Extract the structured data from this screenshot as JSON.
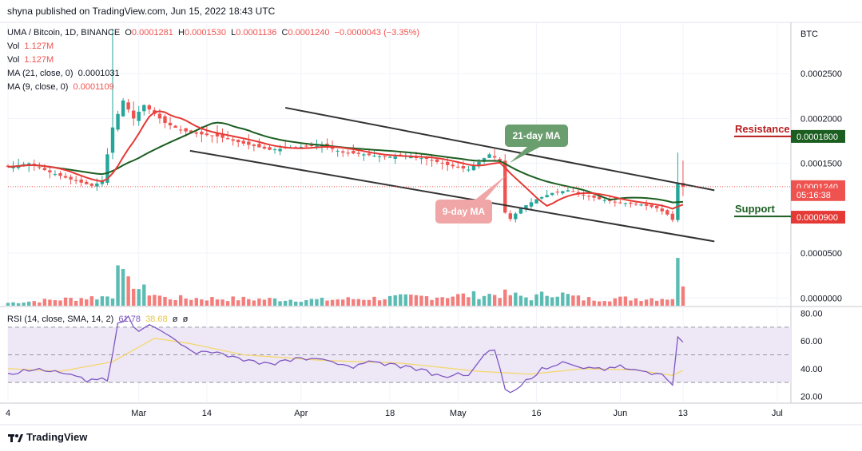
{
  "header": {
    "published": "shyna published on TradingView.com, Jun 15, 2022 18:43 UTC",
    "symbol": "UMA / Bitcoin, 1D, BINANCE",
    "ohlc": {
      "o_label": "O",
      "o": "0.0001281",
      "h_label": "H",
      "h": "0.0001530",
      "l_label": "L",
      "l": "0.0001136",
      "c_label": "C",
      "c": "0.0001240",
      "change": "−0.0000043 (−3.35%)"
    },
    "vol1_label": "Vol",
    "vol1": "1.127M",
    "vol2_label": "Vol",
    "vol2": "1.127M",
    "ma21_label": "MA (21, close, 0)",
    "ma21": "0.0001031",
    "ma9_label": "MA (9, close, 0)",
    "ma9": "0.0001109"
  },
  "rsi_legend": {
    "label": "RSI (14, close, SMA, 14, 2)",
    "rsi": "61.78",
    "sma": "38.68",
    "x1": "ø",
    "x2": "ø"
  },
  "footer": {
    "brand": "TradingView"
  },
  "colors": {
    "up": "#26a69a",
    "down": "#ef5350",
    "ma21": "#1b5e20",
    "ma9": "#e53935",
    "channel": "#333333",
    "rsi": "#7e57c2",
    "rsi_sma": "#f5d76e",
    "rsi_band": "#ede7f6",
    "resistance": "#b71c1c",
    "support": "#1b5e20"
  },
  "chart_data": {
    "type": "candlestick",
    "title": "UMA / Bitcoin, 1D, BINANCE",
    "currency_label": "BTC",
    "y_ticks": [
      "0.0002500",
      "0.0002000",
      "0.0001500",
      "0.0000500",
      "0.0000000"
    ],
    "y_tick_values": [
      0.00025,
      0.0002,
      0.00015,
      5e-05,
      0
    ],
    "ylim": [
      0.0,
      0.0003
    ],
    "x_ticks": [
      {
        "label": "4",
        "day": 0
      },
      {
        "label": "Mar",
        "day": 25
      },
      {
        "label": "14",
        "day": 38
      },
      {
        "label": "Apr",
        "day": 56
      },
      {
        "label": "18",
        "day": 73
      },
      {
        "label": "May",
        "day": 86
      },
      {
        "label": "16",
        "day": 101
      },
      {
        "label": "Jun",
        "day": 117
      },
      {
        "label": "13",
        "day": 129
      },
      {
        "label": "Jul",
        "day": 147
      }
    ],
    "ohlc_anchors": [
      {
        "day": 0,
        "close": 0.000146
      },
      {
        "day": 4,
        "close": 0.00015
      },
      {
        "day": 8,
        "close": 0.00014
      },
      {
        "day": 12,
        "close": 0.000132
      },
      {
        "day": 16,
        "close": 0.000125
      },
      {
        "day": 18,
        "close": 0.00013
      },
      {
        "day": 20,
        "close": 0.00019
      },
      {
        "day": 22,
        "close": 0.00022
      },
      {
        "day": 24,
        "close": 0.0002
      },
      {
        "day": 26,
        "close": 0.000215
      },
      {
        "day": 28,
        "close": 0.000205
      },
      {
        "day": 30,
        "close": 0.000195
      },
      {
        "day": 33,
        "close": 0.000187
      },
      {
        "day": 36,
        "close": 0.000183
      },
      {
        "day": 40,
        "close": 0.00018
      },
      {
        "day": 45,
        "close": 0.000172
      },
      {
        "day": 50,
        "close": 0.000165
      },
      {
        "day": 55,
        "close": 0.000168
      },
      {
        "day": 60,
        "close": 0.00017
      },
      {
        "day": 64,
        "close": 0.000162
      },
      {
        "day": 68,
        "close": 0.00016
      },
      {
        "day": 72,
        "close": 0.000157
      },
      {
        "day": 76,
        "close": 0.000158
      },
      {
        "day": 80,
        "close": 0.000155
      },
      {
        "day": 84,
        "close": 0.000148
      },
      {
        "day": 88,
        "close": 0.000143
      },
      {
        "day": 92,
        "close": 0.00016
      },
      {
        "day": 94,
        "close": 0.000153
      },
      {
        "day": 95,
        "close": 9.5e-05
      },
      {
        "day": 96,
        "close": 8.8e-05
      },
      {
        "day": 98,
        "close": 0.0001
      },
      {
        "day": 101,
        "close": 0.00011
      },
      {
        "day": 104,
        "close": 0.000117
      },
      {
        "day": 107,
        "close": 0.00012
      },
      {
        "day": 110,
        "close": 0.000115
      },
      {
        "day": 113,
        "close": 0.00011
      },
      {
        "day": 117,
        "close": 0.000106
      },
      {
        "day": 121,
        "close": 0.000104
      },
      {
        "day": 124,
        "close": 0.0001
      },
      {
        "day": 126,
        "close": 9.3e-05
      },
      {
        "day": 127,
        "close": 8.7e-05
      },
      {
        "day": 128,
        "close": 0.000128
      },
      {
        "day": 129,
        "close": 0.000124
      }
    ],
    "last_candle": {
      "open": 0.0001281,
      "high": 0.000153,
      "low": 0.0001136,
      "close": 0.000124
    },
    "moving_averages": [
      {
        "name": "MA (21, close, 0)",
        "last": 0.0001031
      },
      {
        "name": "MA (9, close, 0)",
        "last": 0.0001109
      }
    ],
    "volume_anchors": [
      {
        "day": 0,
        "value": 0.03
      },
      {
        "day": 20,
        "value": 0.1
      },
      {
        "day": 21,
        "value": 0.65
      },
      {
        "day": 22,
        "value": 0.28
      },
      {
        "day": 23,
        "value": 0.22
      },
      {
        "day": 24,
        "value": 0.25
      },
      {
        "day": 25,
        "value": 0.18
      },
      {
        "day": 30,
        "value": 0.08
      },
      {
        "day": 60,
        "value": 0.06
      },
      {
        "day": 95,
        "value": 0.12
      },
      {
        "day": 100,
        "value": 0.08
      },
      {
        "day": 104,
        "value": 0.14
      },
      {
        "day": 110,
        "value": 0.07
      },
      {
        "day": 127,
        "value": 0.08
      },
      {
        "day": 128,
        "value": 0.4
      },
      {
        "day": 129,
        "value": 0.28
      }
    ],
    "channel": {
      "upper": [
        {
          "day": 53,
          "value": 0.000212
        },
        {
          "day": 135,
          "value": 0.00012
        }
      ],
      "lower": [
        {
          "day": 47,
          "value": 0.000148
        },
        {
          "day": 135,
          "value": 6.3e-05
        }
      ]
    },
    "annotations": [
      {
        "text": "21-day MA",
        "kind": "callout-green",
        "day": 128.5,
        "value": 0.000152
      },
      {
        "text": "9-day MA",
        "kind": "callout-red",
        "day": 113,
        "value": 9e-05
      },
      {
        "text": "Resistance",
        "kind": "level-label-red",
        "value": 0.00018
      },
      {
        "text": "Support",
        "kind": "level-label-green",
        "value": 9e-05
      }
    ],
    "price_labels": [
      {
        "text": "0.0001800",
        "value": 0.00018,
        "style": "resistance"
      },
      {
        "text": "0.0001240",
        "value": 0.000124,
        "style": "last"
      },
      {
        "text": "05:16:38",
        "value": 0.0001205,
        "style": "countdown"
      },
      {
        "text": "0.0000900",
        "value": 9e-05,
        "style": "support"
      }
    ],
    "rsi": {
      "name": "RSI (14, close, SMA, 14, 2)",
      "last": 61.78,
      "sma_last": 38.68,
      "y_ticks": [
        "80.00",
        "60.00",
        "40.00",
        "20.00"
      ],
      "y_tick_values": [
        80,
        60,
        40,
        20
      ],
      "ylim": [
        15,
        85
      ],
      "bands": [
        70,
        50,
        30
      ],
      "anchors": [
        {
          "day": 0,
          "value": 35
        },
        {
          "day": 5,
          "value": 39
        },
        {
          "day": 10,
          "value": 37
        },
        {
          "day": 15,
          "value": 33
        },
        {
          "day": 19,
          "value": 31
        },
        {
          "day": 21,
          "value": 70
        },
        {
          "day": 23,
          "value": 78
        },
        {
          "day": 25,
          "value": 67
        },
        {
          "day": 27,
          "value": 72
        },
        {
          "day": 30,
          "value": 66
        },
        {
          "day": 35,
          "value": 53
        },
        {
          "day": 40,
          "value": 52
        },
        {
          "day": 45,
          "value": 47
        },
        {
          "day": 50,
          "value": 44
        },
        {
          "day": 55,
          "value": 48
        },
        {
          "day": 60,
          "value": 47
        },
        {
          "day": 65,
          "value": 42
        },
        {
          "day": 70,
          "value": 45
        },
        {
          "day": 75,
          "value": 43
        },
        {
          "day": 80,
          "value": 39
        },
        {
          "day": 84,
          "value": 33
        },
        {
          "day": 86,
          "value": 37
        },
        {
          "day": 88,
          "value": 35
        },
        {
          "day": 91,
          "value": 50
        },
        {
          "day": 93,
          "value": 56
        },
        {
          "day": 95,
          "value": 25
        },
        {
          "day": 96,
          "value": 22
        },
        {
          "day": 99,
          "value": 30
        },
        {
          "day": 102,
          "value": 38
        },
        {
          "day": 106,
          "value": 45
        },
        {
          "day": 110,
          "value": 40
        },
        {
          "day": 115,
          "value": 41
        },
        {
          "day": 120,
          "value": 39
        },
        {
          "day": 125,
          "value": 36
        },
        {
          "day": 127,
          "value": 28
        },
        {
          "day": 128,
          "value": 63
        },
        {
          "day": 129,
          "value": 61.78
        }
      ],
      "sma_anchors": [
        {
          "day": 0,
          "value": 40
        },
        {
          "day": 10,
          "value": 38
        },
        {
          "day": 20,
          "value": 45
        },
        {
          "day": 28,
          "value": 62
        },
        {
          "day": 35,
          "value": 58
        },
        {
          "day": 45,
          "value": 50
        },
        {
          "day": 60,
          "value": 46
        },
        {
          "day": 75,
          "value": 44
        },
        {
          "day": 90,
          "value": 38
        },
        {
          "day": 100,
          "value": 36
        },
        {
          "day": 110,
          "value": 40
        },
        {
          "day": 120,
          "value": 39
        },
        {
          "day": 127,
          "value": 35
        },
        {
          "day": 129,
          "value": 38.68
        }
      ]
    }
  }
}
